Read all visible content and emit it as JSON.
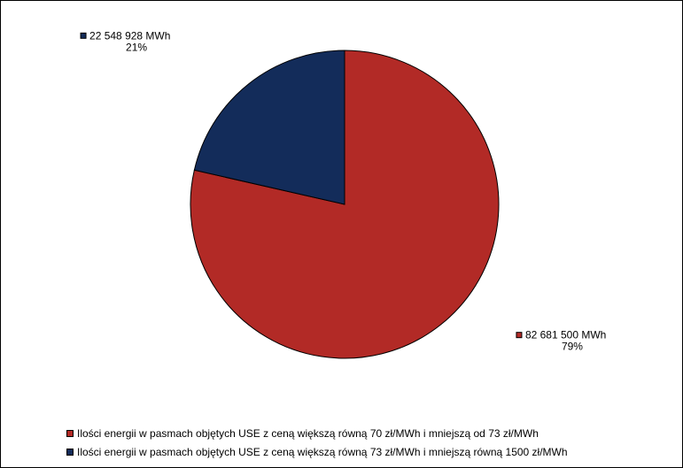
{
  "chart_data": {
    "type": "pie",
    "title": "",
    "slices": [
      {
        "name": "Ilości energii w pasmach objętych USE z ceną większą równą 70 zł/MWh i mniejszą od 73 zł/MWh",
        "value": 82681500,
        "value_label": "82 681 500 MWh",
        "percent_label": "79%",
        "color": "#B22A26"
      },
      {
        "name": "Ilości energii w pasmach objętych USE z ceną większą równą 73 zł/MWh i mniejszą równą 1500 zł/MWh",
        "value": 22548928,
        "value_label": "22 548 928 MWh",
        "percent_label": "21%",
        "color": "#132C5A"
      }
    ],
    "legend_position": "bottom-left"
  }
}
